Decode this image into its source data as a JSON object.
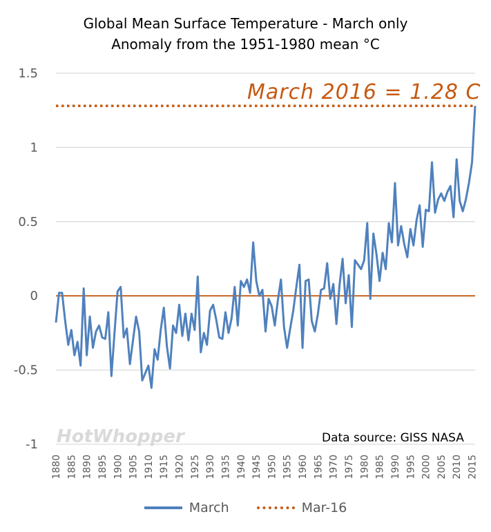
{
  "chart_data": {
    "type": "line",
    "title": "Global Mean Surface Temperature  - March only",
    "subtitle": "Anomaly from the 1951-1980 mean °C",
    "ylim": [
      -1,
      1.5
    ],
    "yticks": [
      "1.5",
      "1",
      "0.5",
      "0",
      "-0.5",
      "-1"
    ],
    "xtick_labels": [
      "1880",
      "1885",
      "1890",
      "1895",
      "1900",
      "1905",
      "1910",
      "1915",
      "1920",
      "1925",
      "1930",
      "1935",
      "1940",
      "1945",
      "1950",
      "1955",
      "1960",
      "1965",
      "1970",
      "1975",
      "1980",
      "1985",
      "1990",
      "1995",
      "2000",
      "2005",
      "2010",
      "2015"
    ],
    "x_start": 1880,
    "x_end": 2016,
    "grid": true,
    "legend_position": "bottom",
    "series": [
      {
        "name": "March",
        "color": "#4f81bd",
        "style": "solid",
        "values": [
          -0.18,
          0.02,
          0.02,
          -0.17,
          -0.33,
          -0.23,
          -0.4,
          -0.31,
          -0.47,
          0.05,
          -0.4,
          -0.14,
          -0.35,
          -0.24,
          -0.2,
          -0.28,
          -0.29,
          -0.11,
          -0.54,
          -0.25,
          0.03,
          0.06,
          -0.28,
          -0.22,
          -0.46,
          -0.3,
          -0.14,
          -0.24,
          -0.57,
          -0.52,
          -0.47,
          -0.62,
          -0.36,
          -0.43,
          -0.23,
          -0.08,
          -0.34,
          -0.49,
          -0.2,
          -0.25,
          -0.06,
          -0.27,
          -0.12,
          -0.3,
          -0.12,
          -0.23,
          0.13,
          -0.38,
          -0.25,
          -0.33,
          -0.1,
          -0.06,
          -0.16,
          -0.28,
          -0.29,
          -0.11,
          -0.25,
          -0.15,
          0.06,
          -0.2,
          0.1,
          0.06,
          0.11,
          0.02,
          0.36,
          0.1,
          0.0,
          0.04,
          -0.24,
          -0.02,
          -0.07,
          -0.2,
          -0.03,
          0.11,
          -0.21,
          -0.35,
          -0.22,
          -0.1,
          0.06,
          0.21,
          -0.35,
          0.1,
          0.11,
          -0.17,
          -0.24,
          -0.12,
          0.04,
          0.05,
          0.22,
          -0.02,
          0.08,
          -0.19,
          0.07,
          0.25,
          -0.05,
          0.14,
          -0.21,
          0.24,
          0.21,
          0.18,
          0.24,
          0.49,
          -0.02,
          0.42,
          0.28,
          0.1,
          0.29,
          0.18,
          0.49,
          0.36,
          0.76,
          0.34,
          0.47,
          0.35,
          0.26,
          0.45,
          0.34,
          0.51,
          0.61,
          0.33,
          0.58,
          0.57,
          0.9,
          0.56,
          0.65,
          0.69,
          0.64,
          0.7,
          0.74,
          0.53,
          0.92,
          0.64,
          0.57,
          0.65,
          0.76,
          0.9,
          1.28
        ]
      },
      {
        "name": "Mar-16",
        "color": "#c55a11",
        "style": "dotted",
        "value": 1.28
      }
    ],
    "zero_line_color": "#c55a11",
    "annotations": [
      {
        "text": "March 2016 = 1.28 C",
        "color": "#c55a11"
      },
      {
        "text": "Data source: GISS NASA",
        "color": "#000000"
      },
      {
        "text": "HotWhopper",
        "color": "#d9d9d9"
      }
    ]
  }
}
